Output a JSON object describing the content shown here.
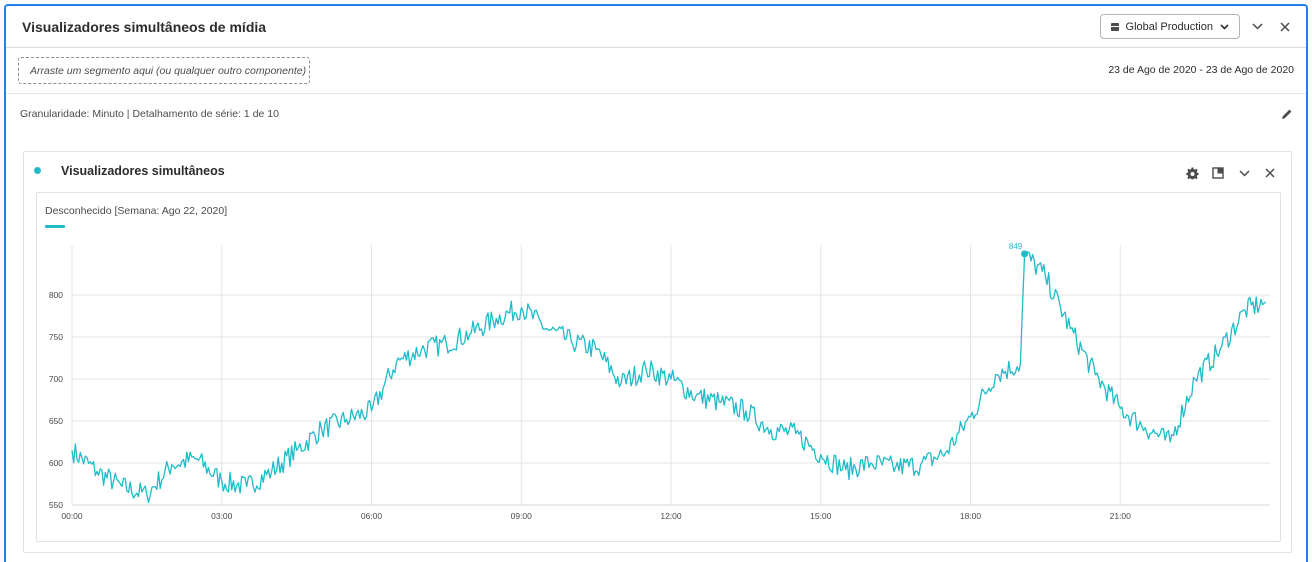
{
  "panel": {
    "title": "Visualizadores simultâneos de mídia",
    "report_suite": "Global Production",
    "drop_zone_text": "Arraste um segmento aqui (ou qualquer outro componente)",
    "date_range": "23 de Ago de 2020 - 23 de Ago de 2020",
    "info_text": "Granularidade: Minuto | Detalhamento de série: 1 de 10"
  },
  "visualization": {
    "title": "Visualizadores simultâneos",
    "legend_label": "Desconhecido [Semana: Ago 22, 2020]"
  },
  "icons": {
    "report_suite": "database-icon",
    "collapse": "chevron-down-icon",
    "close": "close-icon",
    "edit": "pencil-icon",
    "settings": "gear-icon",
    "expand": "expand-icon"
  },
  "colors": {
    "accent_border": "#2680eb",
    "series": "#1ebcc8"
  },
  "chart_data": {
    "type": "line",
    "x_label_ticks": [
      "00:00",
      "03:00",
      "06:00",
      "09:00",
      "12:00",
      "15:00",
      "18:00",
      "21:00"
    ],
    "y_ticks": [
      550,
      600,
      650,
      700,
      750,
      800
    ],
    "ylim": [
      550,
      850
    ],
    "xlim_hours": [
      0,
      24
    ],
    "grid": true,
    "legend": "top-left",
    "annotations": [
      {
        "label": "849",
        "x": "19:05",
        "y": 849
      }
    ],
    "series": [
      {
        "name": "Desconhecido [Semana: Ago 22, 2020]",
        "x": [
          "00:00",
          "00:30",
          "01:00",
          "01:30",
          "02:00",
          "02:30",
          "03:00",
          "03:30",
          "04:00",
          "04:30",
          "05:00",
          "05:30",
          "06:00",
          "06:30",
          "07:00",
          "07:30",
          "08:00",
          "08:30",
          "09:00",
          "09:30",
          "10:00",
          "10:30",
          "11:00",
          "11:30",
          "12:00",
          "12:30",
          "13:00",
          "13:30",
          "14:00",
          "14:30",
          "15:00",
          "15:30",
          "16:00",
          "16:30",
          "17:00",
          "17:30",
          "18:00",
          "18:30",
          "19:00",
          "19:05",
          "19:30",
          "20:00",
          "20:30",
          "21:00",
          "21:30",
          "22:00",
          "22:30",
          "23:00",
          "23:30",
          "23:55"
        ],
        "values": [
          615,
          590,
          572,
          562,
          598,
          605,
          578,
          572,
          590,
          615,
          640,
          652,
          662,
          720,
          735,
          742,
          755,
          772,
          785,
          760,
          745,
          735,
          695,
          712,
          700,
          680,
          672,
          662,
          640,
          635,
          610,
          592,
          600,
          595,
          598,
          612,
          655,
          705,
          718,
          849,
          822,
          760,
          705,
          665,
          642,
          625,
          700,
          735,
          782,
          792
        ]
      }
    ]
  }
}
